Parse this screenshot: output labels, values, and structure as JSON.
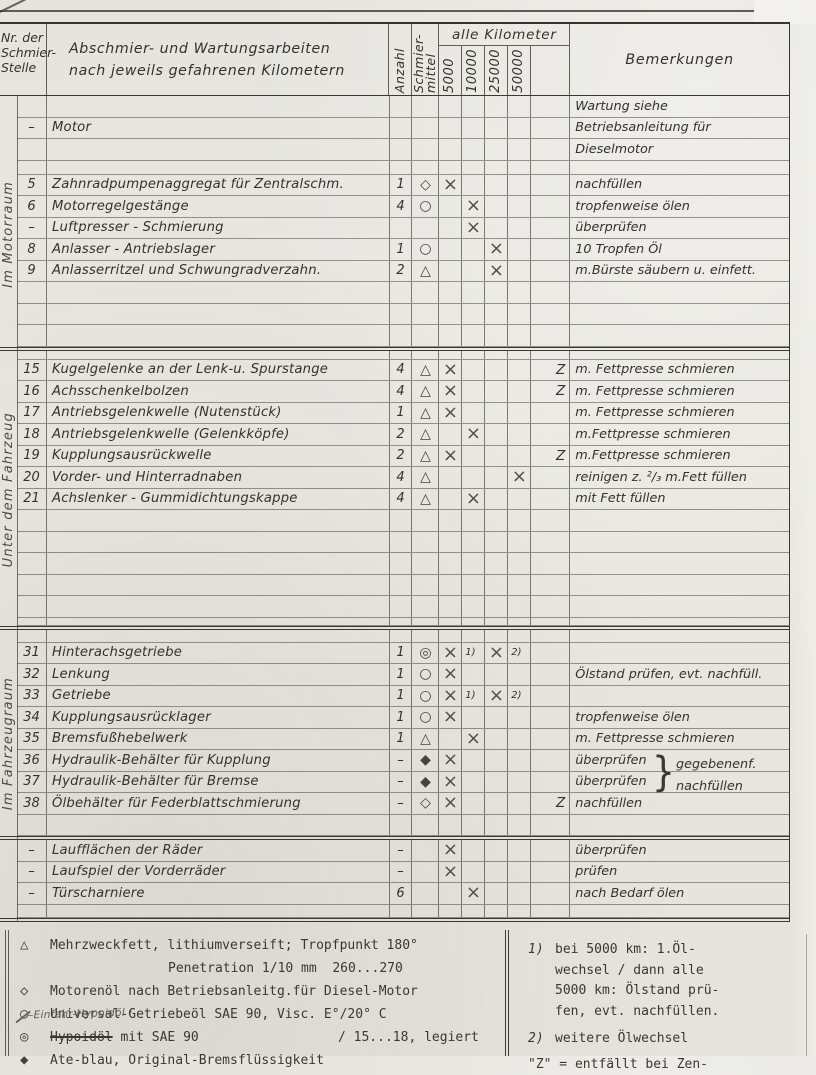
{
  "header": {
    "col_nr": "Nr. der\nSchmier-\nStelle",
    "col_tasks_line1": "Abschmier- und Wartungsarbeiten",
    "col_tasks_line2": "nach jeweils gefahrenen Kilometern",
    "col_anzahl": "Anzahl",
    "col_schmiermittel": "Schmier-\nmittel",
    "col_km_group": "alle Kilometer",
    "km_intervals": [
      "5000",
      "10000",
      "25000",
      "50000"
    ],
    "col_bemerkungen": "Bemerkungen"
  },
  "sections": [
    {
      "label": "Im Motorraum"
    },
    {
      "label": "Unter dem Fahrzeug"
    },
    {
      "label": "Im Fahrzeugraum"
    }
  ],
  "symbols": {
    "tri": "△",
    "dia": "◇",
    "cir": "○",
    "dcir": "◎",
    "fdia": "◆"
  },
  "rows": [
    {
      "t": "r",
      "rem": "Wartung siehe"
    },
    {
      "t": "r",
      "nr": "–",
      "desc": "Motor",
      "rem": "Betriebsanleitung für"
    },
    {
      "t": "r",
      "rem": "Dieselmotor"
    },
    {
      "t": "g",
      "h": 14
    },
    {
      "t": "r",
      "nr": "5",
      "desc": "Zahnradpumpenaggregat für Zentralschm.",
      "qty": "1",
      "lub": "dia",
      "km": [
        "x",
        "",
        "",
        ""
      ],
      "rem": "nachfüllen"
    },
    {
      "t": "r",
      "nr": "6",
      "desc": "Motorregelgestänge",
      "qty": "4",
      "lub": "cir",
      "km": [
        "",
        "x",
        "",
        ""
      ],
      "rem": "tropfenweise ölen"
    },
    {
      "t": "r",
      "nr": "–",
      "desc": "Luftpresser - Schmierung",
      "km": [
        "",
        "x",
        "",
        ""
      ],
      "rem": "überprüfen"
    },
    {
      "t": "r",
      "nr": "8",
      "desc": "Anlasser - Antriebslager",
      "qty": "1",
      "lub": "cir",
      "km": [
        "",
        "",
        "x",
        ""
      ],
      "rem": "10 Tropfen Öl"
    },
    {
      "t": "r",
      "nr": "9",
      "desc": "Anlasserritzel und Schwungradverzahn.",
      "qty": "2",
      "lub": "tri",
      "km": [
        "",
        "",
        "x",
        ""
      ],
      "rem": "m.Bürste säubern u. einfett."
    },
    {
      "t": "r"
    },
    {
      "t": "r"
    },
    {
      "t": "r"
    },
    {
      "t": "s"
    },
    {
      "t": "g",
      "h": 9
    },
    {
      "t": "r",
      "nr": "15",
      "desc": "Kugelgelenke an der Lenk-u. Spurstange",
      "qty": "4",
      "lub": "tri",
      "km": [
        "x",
        "",
        "",
        ""
      ],
      "z": "Z",
      "rem": "m. Fettpresse schmieren"
    },
    {
      "t": "r",
      "nr": "16",
      "desc": "Achsschenkelbolzen",
      "qty": "4",
      "lub": "tri",
      "km": [
        "x",
        "",
        "",
        ""
      ],
      "z": "Z",
      "rem": "m. Fettpresse schmieren"
    },
    {
      "t": "r",
      "nr": "17",
      "desc": "Antriebsgelenkwelle (Nutenstück)",
      "qty": "1",
      "lub": "tri",
      "km": [
        "x",
        "",
        "",
        ""
      ],
      "rem": "m. Fettpresse schmieren"
    },
    {
      "t": "r",
      "nr": "18",
      "desc": "Antriebsgelenkwelle (Gelenkköpfe)",
      "qty": "2",
      "lub": "tri",
      "km": [
        "",
        "x",
        "",
        ""
      ],
      "rem": "m.Fettpresse schmieren"
    },
    {
      "t": "r",
      "nr": "19",
      "desc": "Kupplungsausrückwelle",
      "qty": "2",
      "lub": "tri",
      "km": [
        "x",
        "",
        "",
        ""
      ],
      "z": "Z",
      "rem": "m.Fettpresse schmieren"
    },
    {
      "t": "r",
      "nr": "20",
      "desc": "Vorder- und Hinterradnaben",
      "qty": "4",
      "lub": "tri",
      "km": [
        "",
        "",
        "",
        "x"
      ],
      "rem": "reinigen z. ²/₃ m.Fett füllen"
    },
    {
      "t": "r",
      "nr": "21",
      "desc": "Achslenker - Gummidichtungskappe",
      "qty": "4",
      "lub": "tri",
      "km": [
        "",
        "x",
        "",
        ""
      ],
      "rem": "mit Fett füllen"
    },
    {
      "t": "r"
    },
    {
      "t": "r"
    },
    {
      "t": "r"
    },
    {
      "t": "r"
    },
    {
      "t": "r"
    },
    {
      "t": "g",
      "h": 8
    },
    {
      "t": "s"
    },
    {
      "t": "g",
      "h": 13
    },
    {
      "t": "r",
      "nr": "31",
      "desc": "Hinterachsgetriebe",
      "qty": "1",
      "lub": "dcir",
      "km": [
        "x",
        "1)",
        "x",
        "2)"
      ]
    },
    {
      "t": "r",
      "nr": "32",
      "desc": "Lenkung",
      "qty": "1",
      "lub": "cir",
      "km": [
        "x",
        "",
        "",
        ""
      ],
      "rem": "Ölstand prüfen, evt. nachfüll."
    },
    {
      "t": "r",
      "nr": "33",
      "desc": "Getriebe",
      "qty": "1",
      "lub": "cir",
      "km": [
        "x",
        "1)",
        "x",
        "2)"
      ]
    },
    {
      "t": "r",
      "nr": "34",
      "desc": "Kupplungsausrücklager",
      "qty": "1",
      "lub": "cir",
      "km": [
        "x",
        "",
        "",
        ""
      ],
      "rem": "tropfenweise ölen"
    },
    {
      "t": "r",
      "nr": "35",
      "desc": "Bremsfußhebelwerk",
      "qty": "1",
      "lub": "tri",
      "km": [
        "",
        "x",
        "",
        ""
      ],
      "rem": "m. Fettpresse schmieren"
    },
    {
      "t": "r",
      "nr": "36",
      "desc": "Hydraulik-Behälter für Kupplung",
      "qty": "–",
      "lub": "fdia",
      "km": [
        "x",
        "",
        "",
        ""
      ],
      "rem": "überprüfen"
    },
    {
      "t": "r",
      "nr": "37",
      "desc": "Hydraulik-Behälter für Bremse",
      "qty": "–",
      "lub": "fdia",
      "km": [
        "x",
        "",
        "",
        ""
      ],
      "rem": "überprüfen"
    },
    {
      "t": "r",
      "nr": "38",
      "desc": "Ölbehälter für Federblattschmierung",
      "qty": "–",
      "lub": "dia",
      "km": [
        "x",
        "",
        "",
        ""
      ],
      "z": "Z",
      "rem": "nachfüllen"
    },
    {
      "t": "r"
    },
    {
      "t": "s"
    },
    {
      "t": "r",
      "nr": "–",
      "desc": "Laufflächen der Räder",
      "qty": "–",
      "km": [
        "x",
        "",
        "",
        ""
      ],
      "rem": "überprüfen"
    },
    {
      "t": "r",
      "nr": "–",
      "desc": "Laufspiel der Vorderräder",
      "qty": "–",
      "km": [
        "x",
        "",
        "",
        ""
      ],
      "rem": "prüfen"
    },
    {
      "t": "r",
      "nr": "–",
      "desc": "Türscharniere",
      "qty": "6",
      "km": [
        "",
        "x",
        "",
        ""
      ],
      "rem": "nach Bedarf ölen"
    },
    {
      "t": "g",
      "h": 13
    },
    {
      "t": "s"
    }
  ],
  "brace_note": {
    "brace": "}",
    "line1": "gegebenenf.",
    "line2": "nachfüllen"
  },
  "legend": {
    "grease": {
      "symbol": "△",
      "text": "Mehrzweckfett, lithiumverseift; Tropfpunkt 180°",
      "text2": "Penetration 1/10 mm  260...270"
    },
    "motor_oil": {
      "symbol": "◇",
      "text": "Motorenöl nach Betriebsanleitg.für Diesel-Motor"
    },
    "gear_oil": {
      "symbol": "○",
      "text": "Universal-Getriebeöl SAE 90, Visc. E°/20° C"
    },
    "hypoid": {
      "symbol": "◎",
      "struck": "Hypoidöl",
      "rest": " mit SAE 90",
      "note": "/ 15...18, legiert"
    },
    "brake_fluid": {
      "symbol": "◆",
      "text": "Ate-blau, Original-Bremsflüssigkeit"
    }
  },
  "annotations": {
    "handwritten": "–Einfahr-Hypoidöl !"
  },
  "notes": {
    "n1": {
      "marker": "1)",
      "text": "bei 5000 km: 1.Öl-\nwechsel / dann alle\n5000 km: Ölstand prü-\nfen, evt. nachfüllen."
    },
    "n2": {
      "marker": "2)",
      "text": "weitere Ölwechsel"
    },
    "z_line": "\"Z\" = entfällt bei Zen-"
  }
}
